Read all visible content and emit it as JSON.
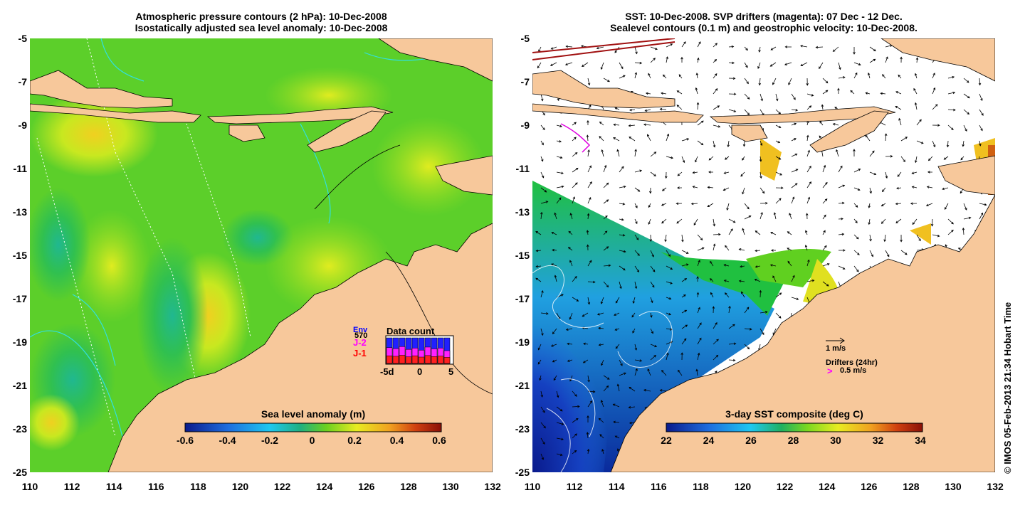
{
  "left_panel": {
    "title_line1": "Atmospheric pressure contours (2 hPa): 10-Dec-2008",
    "title_line2": "Isostatically adjusted sea level anomaly: 10-Dec-2008",
    "colorbar_title": "Sea level anomaly (m)",
    "colorbar_ticks": [
      "-0.6",
      "-0.4",
      "-0.2",
      "0",
      "0.2",
      "0.4",
      "0.6"
    ],
    "colorbar_colors": [
      "#0a1a8c",
      "#1f6fe0",
      "#1fc8f0",
      "#20b080",
      "#6ad020",
      "#e8ec20",
      "#f0a020",
      "#d04010",
      "#8a1008"
    ],
    "data_count": {
      "title": "Data count",
      "labels": [
        "Env",
        "J-2",
        "J-1"
      ],
      "label_colors": [
        "#0000ff",
        "#ff00ff",
        "#ff0000"
      ],
      "count_text": "570",
      "x_ticks": [
        "-5d",
        "0",
        "5"
      ],
      "bars_env": [
        1,
        1,
        1,
        1,
        1,
        1,
        1,
        1,
        1,
        1
      ],
      "bars_j2": [
        0.62,
        0.58,
        0.66,
        0.55,
        0.6,
        0.52,
        0.64,
        0.57,
        0.6,
        0.5
      ],
      "bars_j1": [
        0.3,
        0.28,
        0.32,
        0.26,
        0.3,
        0.25,
        0.31,
        0.27,
        0.29,
        0.24
      ]
    }
  },
  "right_panel": {
    "title_line1": "SST: 10-Dec-2008. SVP drifters (magenta): 07 Dec - 12 Dec.",
    "title_line2": "Sealevel contours (0.1 m) and geostrophic velocity: 10-Dec-2008.",
    "colorbar_title": "3-day SST composite (deg C)",
    "colorbar_ticks": [
      "22",
      "24",
      "26",
      "28",
      "30",
      "32",
      "34"
    ],
    "colorbar_colors": [
      "#0a1a8c",
      "#1f6fe0",
      "#1fc8f0",
      "#20b060",
      "#7ad820",
      "#e8ec20",
      "#f0a020",
      "#d04010",
      "#8a1008"
    ],
    "velocity_scale": "1 m/s",
    "drifter_label": "Drifters (24hr)",
    "drifter_scale": "0.5 m/s",
    "drifter_glyph": ">"
  },
  "axes": {
    "y_ticks": [
      "-5",
      "-7",
      "-9",
      "-11",
      "-13",
      "-15",
      "-17",
      "-19",
      "-21",
      "-23",
      "-25"
    ],
    "x_ticks": [
      "110",
      "112",
      "114",
      "116",
      "118",
      "120",
      "122",
      "124",
      "126",
      "128",
      "130",
      "132"
    ]
  },
  "credit": "© IMOS 05-Feb-2013 21:34 Hobart Time",
  "colors": {
    "land": "#f7c89b",
    "sea_green": "#4ccf2e",
    "no_data": "#ffffff"
  }
}
